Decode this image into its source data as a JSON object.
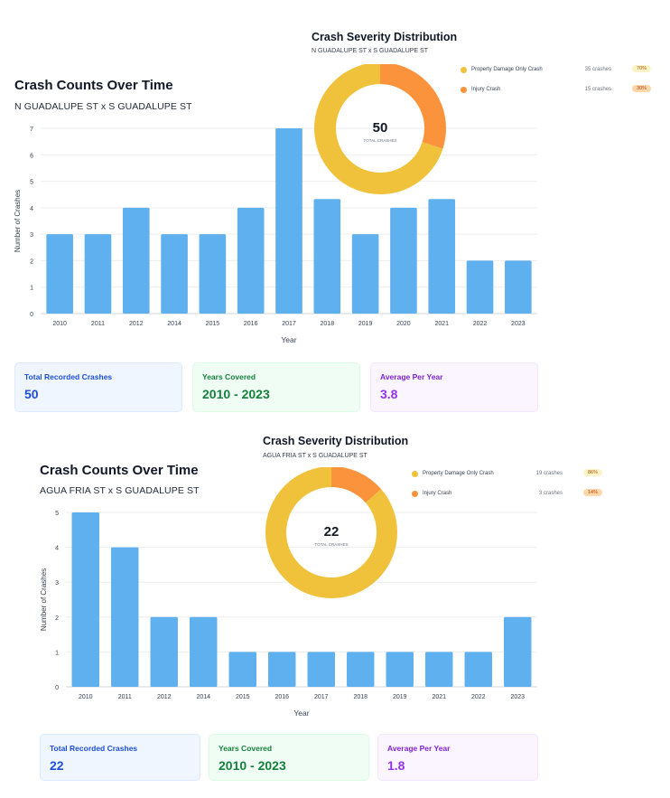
{
  "colors": {
    "bar": "#5fb0ef",
    "grid": "#eeeeee",
    "axis_text": "#374151",
    "donut_property": "#f0c13a",
    "donut_injury": "#fb923c"
  },
  "panels": [
    {
      "bar_title": "Crash Counts Over Time",
      "bar_subtitle": "N GUADALUPE ST x S GUADALUPE ST",
      "severity_title": "Crash Severity Distribution",
      "severity_subtitle": "N GUADALUPE ST x S GUADALUPE ST",
      "donut_total": "50",
      "donut_total_label": "TOTAL CRASHES",
      "legend": [
        {
          "label": "Property Damage Only Crash",
          "count": "35 crashes",
          "pct": "70%",
          "color_key": "donut_property"
        },
        {
          "label": "Injury Crash",
          "count": "15 crashes",
          "pct": "30%",
          "color_key": "donut_injury"
        }
      ],
      "cards": [
        {
          "label": "Total Recorded Crashes",
          "value": "50",
          "style": "blue"
        },
        {
          "label": "Years Covered",
          "value": "2010 - 2023",
          "style": "green"
        },
        {
          "label": "Average Per Year",
          "value": "3.8",
          "style": "purple"
        }
      ]
    },
    {
      "bar_title": "Crash Counts Over Time",
      "bar_subtitle": "AGUA FRIA ST x S GUADALUPE ST",
      "severity_title": "Crash Severity Distribution",
      "severity_subtitle": "AGUA FRIA ST x S GUADALUPE ST",
      "donut_total": "22",
      "donut_total_label": "TOTAL CRASHES",
      "legend": [
        {
          "label": "Property Damage Only Crash",
          "count": "19 crashes",
          "pct": "86%",
          "color_key": "donut_property"
        },
        {
          "label": "Injury Crash",
          "count": "3 crashes",
          "pct": "14%",
          "color_key": "donut_injury"
        }
      ],
      "cards": [
        {
          "label": "Total Recorded Crashes",
          "value": "22",
          "style": "blue"
        },
        {
          "label": "Years Covered",
          "value": "2010 - 2023",
          "style": "green"
        },
        {
          "label": "Average Per Year",
          "value": "1.8",
          "style": "purple"
        }
      ]
    }
  ],
  "chart_data": [
    {
      "type": "bar",
      "title": "Crash Counts Over Time",
      "subtitle": "N GUADALUPE ST x S GUADALUPE ST",
      "xlabel": "Year",
      "ylabel": "Number of Crashes",
      "categories": [
        "2010",
        "2011",
        "2012",
        "2014",
        "2015",
        "2016",
        "2017",
        "2018",
        "2019",
        "2020",
        "2021",
        "2022",
        "2023"
      ],
      "values": [
        3,
        3,
        4,
        3,
        3,
        4,
        7,
        4.33,
        3,
        4,
        4.33,
        2,
        2
      ],
      "ylim": [
        0,
        7
      ],
      "yticks": [
        0,
        1,
        2,
        3,
        4,
        5,
        6,
        7
      ],
      "grid": true
    },
    {
      "type": "pie",
      "title": "Crash Severity Distribution",
      "subtitle": "N GUADALUPE ST x S GUADALUPE ST",
      "categories": [
        "Property Damage Only Crash",
        "Injury Crash"
      ],
      "values": [
        35,
        15
      ]
    },
    {
      "type": "bar",
      "title": "Crash Counts Over Time",
      "subtitle": "AGUA FRIA ST x S GUADALUPE ST",
      "xlabel": "Year",
      "ylabel": "Number of Crashes",
      "categories": [
        "2010",
        "2011",
        "2012",
        "2014",
        "2015",
        "2016",
        "2017",
        "2018",
        "2019",
        "2021",
        "2022",
        "2023"
      ],
      "values": [
        5,
        4,
        2,
        2,
        1,
        1,
        1,
        1,
        1,
        1,
        1,
        2
      ],
      "ylim": [
        0,
        5
      ],
      "yticks": [
        0,
        1,
        2,
        3,
        4,
        5
      ],
      "grid": true
    },
    {
      "type": "pie",
      "title": "Crash Severity Distribution",
      "subtitle": "AGUA FRIA ST x S GUADALUPE ST",
      "categories": [
        "Property Damage Only Crash",
        "Injury Crash"
      ],
      "values": [
        19,
        3
      ]
    }
  ]
}
